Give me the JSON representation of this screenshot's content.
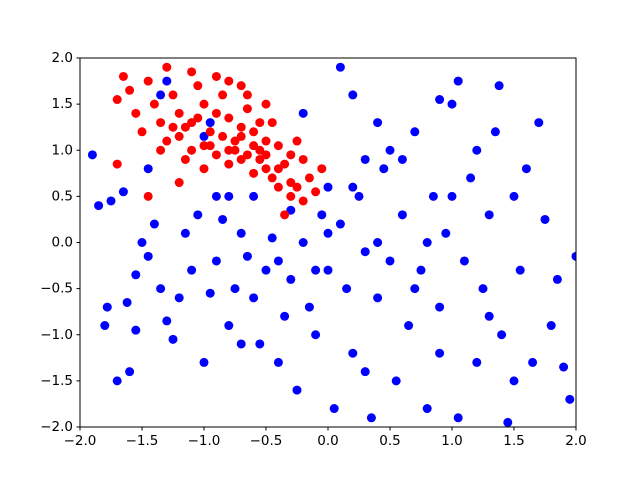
{
  "chart_data": {
    "type": "scatter",
    "xlim": [
      -2,
      2
    ],
    "ylim": [
      -2,
      2
    ],
    "xticks": [
      {
        "value": -2,
        "label": "−2.0"
      },
      {
        "value": -1.5,
        "label": "−1.5"
      },
      {
        "value": -1,
        "label": "−1.0"
      },
      {
        "value": -0.5,
        "label": "−0.5"
      },
      {
        "value": 0,
        "label": "0.0"
      },
      {
        "value": 0.5,
        "label": "0.5"
      },
      {
        "value": 1,
        "label": "1.0"
      },
      {
        "value": 1.5,
        "label": "1.5"
      },
      {
        "value": 2,
        "label": "2.0"
      }
    ],
    "yticks": [
      {
        "value": -2,
        "label": "−2.0"
      },
      {
        "value": -1.5,
        "label": "−1.5"
      },
      {
        "value": -1,
        "label": "−1.0"
      },
      {
        "value": -0.5,
        "label": "−0.5"
      },
      {
        "value": 0,
        "label": "0.0"
      },
      {
        "value": 0.5,
        "label": "0.5"
      },
      {
        "value": 1,
        "label": "1.0"
      },
      {
        "value": 1.5,
        "label": "1.5"
      },
      {
        "value": 2,
        "label": "2.0"
      }
    ],
    "grid": false,
    "series": [
      {
        "color": "#0000ff",
        "x": [
          -1.9,
          -1.85,
          -1.75,
          -1.8,
          -1.78,
          -1.7,
          -1.6,
          -1.62,
          -1.55,
          -1.5,
          -1.45,
          -1.4,
          -1.35,
          -1.3,
          -1.25,
          -1.2,
          -1.15,
          -1.1,
          -1.05,
          -1.0,
          -0.95,
          -0.9,
          -0.85,
          -0.8,
          -0.75,
          -0.7,
          -0.65,
          -0.6,
          -0.55,
          -0.5,
          -0.45,
          -0.4,
          -0.35,
          -0.3,
          -0.25,
          -0.2,
          -0.15,
          -0.1,
          -0.05,
          0.0,
          0.05,
          0.1,
          0.15,
          0.2,
          0.25,
          0.3,
          0.35,
          0.4,
          0.45,
          0.5,
          0.55,
          0.6,
          0.65,
          0.7,
          0.75,
          0.8,
          0.85,
          0.9,
          0.95,
          1.0,
          1.05,
          1.1,
          1.15,
          1.2,
          1.25,
          1.3,
          1.35,
          1.4,
          1.45,
          1.5,
          1.55,
          1.6,
          1.65,
          1.7,
          1.75,
          1.8,
          1.85,
          1.9,
          1.95,
          2.0,
          0.1,
          0.2,
          0.4,
          0.9,
          1.05,
          1.38,
          -0.2,
          -1.35,
          -1.3,
          -1.65,
          -1.45,
          -1.55,
          -0.9,
          -0.95,
          -1.0,
          0.0,
          -0.3,
          0.2,
          0.6,
          0.5,
          0.3,
          1.2,
          1.0,
          0.8,
          0.7,
          1.3,
          -0.6,
          -0.8,
          -0.1,
          0.4,
          0.0,
          -0.4,
          -0.7,
          0.3,
          0.9,
          1.5
        ],
        "values": [
          0.95,
          0.4,
          0.45,
          -0.9,
          -0.7,
          -1.5,
          -1.4,
          -0.65,
          -0.35,
          0.0,
          -0.15,
          0.2,
          -0.5,
          -0.85,
          -1.05,
          -0.6,
          0.1,
          -0.3,
          0.3,
          -1.3,
          -0.55,
          -0.2,
          0.25,
          -0.9,
          -0.5,
          0.1,
          -0.15,
          -0.6,
          -1.1,
          -0.3,
          0.05,
          -1.3,
          -0.8,
          -0.4,
          -1.6,
          0.0,
          -0.7,
          -1.0,
          0.3,
          -0.3,
          -1.8,
          0.2,
          -0.5,
          -1.2,
          0.5,
          -0.1,
          -1.9,
          -0.6,
          0.8,
          -0.2,
          -1.5,
          0.3,
          -0.9,
          1.2,
          -0.3,
          -1.8,
          0.5,
          -0.7,
          0.1,
          1.5,
          -1.9,
          -0.2,
          0.7,
          -1.3,
          -0.5,
          0.3,
          1.2,
          -1.0,
          -1.95,
          0.5,
          -0.3,
          0.8,
          -1.3,
          1.3,
          0.25,
          -0.9,
          -0.4,
          -1.35,
          -1.7,
          -0.15,
          1.9,
          1.6,
          1.3,
          1.55,
          1.75,
          1.7,
          1.4,
          1.6,
          1.75,
          0.55,
          0.8,
          -0.95,
          0.5,
          1.3,
          1.15,
          0.6,
          0.35,
          0.6,
          0.9,
          1.0,
          0.9,
          1.0,
          0.5,
          0.0,
          -0.5,
          -0.8,
          0.5,
          0.5,
          -0.3,
          0.0,
          0.1,
          -0.2,
          -1.1,
          -1.4,
          -1.2,
          -1.5
        ]
      },
      {
        "color": "#ff0000",
        "x": [
          -1.65,
          -1.6,
          -1.7,
          -1.55,
          -1.5,
          -1.45,
          -1.4,
          -1.35,
          -1.3,
          -1.25,
          -1.2,
          -1.15,
          -1.1,
          -1.05,
          -1.0,
          -0.95,
          -0.9,
          -0.85,
          -0.8,
          -0.75,
          -0.7,
          -0.65,
          -0.6,
          -0.55,
          -0.5,
          -0.45,
          -0.4,
          -0.35,
          -0.3,
          -0.25,
          -0.2,
          -0.15,
          -0.1,
          -0.05,
          -0.3,
          -0.4,
          -0.6,
          -0.8,
          -1.0,
          -1.2,
          -1.1,
          -0.9,
          -0.7,
          -0.5,
          -0.3,
          -0.75,
          -0.65,
          -0.55,
          -0.85,
          -0.95,
          -1.3,
          -1.1,
          -0.9,
          -0.7,
          -0.5,
          -1.45,
          -1.7,
          -1.2,
          -0.35,
          -0.2,
          -0.45,
          -0.25,
          -0.6,
          -0.8,
          -0.7,
          -0.5,
          -0.4,
          -1.0,
          -1.15,
          -1.35,
          -0.55,
          -0.65,
          -0.8,
          -1.05,
          -1.25
        ],
        "values": [
          1.8,
          1.65,
          1.55,
          1.4,
          1.2,
          1.75,
          1.5,
          1.3,
          1.1,
          1.6,
          1.4,
          1.25,
          1.0,
          1.7,
          1.5,
          1.2,
          0.95,
          1.6,
          1.35,
          1.1,
          0.9,
          1.45,
          1.2,
          1.0,
          0.8,
          1.3,
          1.05,
          0.85,
          0.65,
          1.1,
          0.9,
          0.7,
          0.55,
          0.8,
          0.5,
          0.6,
          0.75,
          0.85,
          1.05,
          1.15,
          1.3,
          1.4,
          1.25,
          1.1,
          0.95,
          1.0,
          0.95,
          0.9,
          1.15,
          1.05,
          1.9,
          1.85,
          1.8,
          1.7,
          1.5,
          0.5,
          0.85,
          0.65,
          0.3,
          0.45,
          0.7,
          0.6,
          1.05,
          1.0,
          1.15,
          0.95,
          0.8,
          0.8,
          0.9,
          1.0,
          1.3,
          1.6,
          1.75,
          1.35,
          1.25
        ]
      }
    ]
  }
}
